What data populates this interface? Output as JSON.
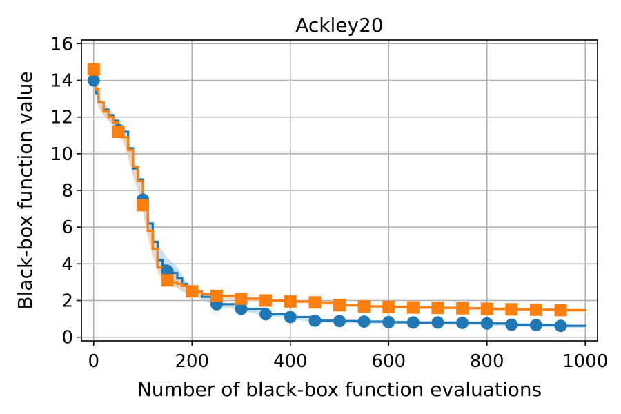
{
  "chart_data": {
    "type": "line",
    "title": "Ackley20",
    "xlabel": "Number of black-box function evaluations",
    "ylabel": "Black-box function value",
    "xlim": [
      -25,
      1025
    ],
    "ylim": [
      -0.2,
      16.2
    ],
    "xticks": [
      0,
      200,
      400,
      600,
      800,
      1000
    ],
    "yticks": [
      0,
      2,
      4,
      6,
      8,
      10,
      12,
      14,
      16
    ],
    "grid": true,
    "legend": "none",
    "series": [
      {
        "color": "#1f77b4",
        "band_color": "#9ec9e8",
        "marker": "circle",
        "x": [
          0,
          5,
          10,
          20,
          30,
          40,
          50,
          60,
          70,
          80,
          90,
          100,
          110,
          120,
          130,
          140,
          150,
          160,
          170,
          180,
          190,
          200,
          220,
          250,
          300,
          350,
          400,
          450,
          500,
          550,
          600,
          650,
          700,
          750,
          800,
          850,
          900,
          950,
          1000
        ],
        "values": [
          14.0,
          13.3,
          12.8,
          12.4,
          12.1,
          11.8,
          11.3,
          11.2,
          10.3,
          9.2,
          8.6,
          7.5,
          6.2,
          5.2,
          4.2,
          3.9,
          3.6,
          3.5,
          3.2,
          2.9,
          2.7,
          2.5,
          2.2,
          1.8,
          1.55,
          1.25,
          1.1,
          0.9,
          0.88,
          0.85,
          0.82,
          0.8,
          0.8,
          0.78,
          0.75,
          0.68,
          0.66,
          0.62,
          0.58
        ],
        "lower": [
          13.9,
          13.1,
          12.5,
          12.1,
          11.8,
          11.5,
          11.0,
          10.8,
          9.9,
          8.8,
          8.0,
          6.9,
          5.7,
          4.6,
          3.7,
          3.3,
          3.0,
          2.9,
          2.7,
          2.5,
          2.4,
          2.3,
          2.05,
          1.7,
          1.45,
          1.15,
          1.0,
          0.8,
          0.78,
          0.75,
          0.72,
          0.7,
          0.7,
          0.68,
          0.65,
          0.58,
          0.56,
          0.52,
          0.5
        ],
        "upper": [
          14.1,
          13.6,
          13.2,
          12.8,
          12.5,
          12.2,
          11.7,
          11.6,
          10.8,
          9.7,
          9.2,
          8.2,
          6.9,
          5.9,
          5.0,
          4.7,
          4.3,
          4.1,
          3.8,
          3.4,
          3.0,
          2.8,
          2.4,
          1.95,
          1.65,
          1.35,
          1.2,
          1.0,
          0.98,
          0.95,
          0.92,
          0.9,
          0.9,
          0.88,
          0.85,
          0.78,
          0.76,
          0.72,
          0.66
        ],
        "marker_x": [
          0,
          50,
          100,
          150,
          200,
          250,
          300,
          350,
          400,
          450,
          500,
          550,
          600,
          650,
          700,
          750,
          800,
          850,
          900,
          950
        ],
        "marker_values": [
          14.0,
          11.3,
          7.5,
          3.6,
          2.5,
          1.8,
          1.55,
          1.25,
          1.1,
          0.9,
          0.88,
          0.85,
          0.82,
          0.8,
          0.8,
          0.78,
          0.75,
          0.68,
          0.66,
          0.62
        ]
      },
      {
        "color": "#ff7f0e",
        "band_color": "#ffc89a",
        "marker": "square",
        "x": [
          0,
          5,
          10,
          20,
          30,
          40,
          50,
          60,
          70,
          80,
          90,
          100,
          110,
          120,
          130,
          140,
          150,
          160,
          170,
          180,
          190,
          200,
          220,
          250,
          300,
          350,
          400,
          450,
          500,
          550,
          600,
          650,
          700,
          750,
          800,
          850,
          900,
          950,
          1000
        ],
        "values": [
          14.6,
          13.5,
          12.8,
          12.3,
          12.0,
          11.7,
          11.2,
          10.9,
          10.2,
          9.3,
          8.5,
          7.2,
          5.8,
          4.8,
          3.8,
          3.4,
          3.1,
          3.0,
          2.9,
          2.8,
          2.6,
          2.5,
          2.35,
          2.25,
          2.1,
          2.0,
          1.95,
          1.9,
          1.75,
          1.68,
          1.65,
          1.62,
          1.6,
          1.58,
          1.55,
          1.52,
          1.5,
          1.48,
          1.42
        ],
        "lower": [
          14.5,
          13.3,
          12.6,
          12.1,
          11.8,
          11.5,
          10.9,
          10.6,
          9.8,
          8.9,
          8.1,
          6.8,
          5.4,
          4.4,
          3.5,
          3.1,
          2.8,
          2.75,
          2.65,
          2.6,
          2.45,
          2.35,
          2.25,
          2.15,
          2.0,
          1.92,
          1.87,
          1.82,
          1.68,
          1.6,
          1.57,
          1.54,
          1.52,
          1.5,
          1.47,
          1.44,
          1.42,
          1.4,
          1.35
        ],
        "upper": [
          14.7,
          13.7,
          13.0,
          12.5,
          12.2,
          11.9,
          11.5,
          11.2,
          10.6,
          9.7,
          8.9,
          7.6,
          6.2,
          5.2,
          4.1,
          3.7,
          3.4,
          3.25,
          3.15,
          3.0,
          2.75,
          2.65,
          2.45,
          2.35,
          2.2,
          2.08,
          2.03,
          1.98,
          1.82,
          1.76,
          1.73,
          1.7,
          1.68,
          1.66,
          1.63,
          1.6,
          1.58,
          1.56,
          1.5
        ],
        "marker_x": [
          0,
          50,
          100,
          150,
          200,
          250,
          300,
          350,
          400,
          450,
          500,
          550,
          600,
          650,
          700,
          750,
          800,
          850,
          900,
          950
        ],
        "marker_values": [
          14.6,
          11.2,
          7.2,
          3.1,
          2.5,
          2.25,
          2.1,
          2.0,
          1.95,
          1.9,
          1.75,
          1.68,
          1.65,
          1.62,
          1.6,
          1.58,
          1.55,
          1.52,
          1.5,
          1.48
        ]
      }
    ]
  }
}
